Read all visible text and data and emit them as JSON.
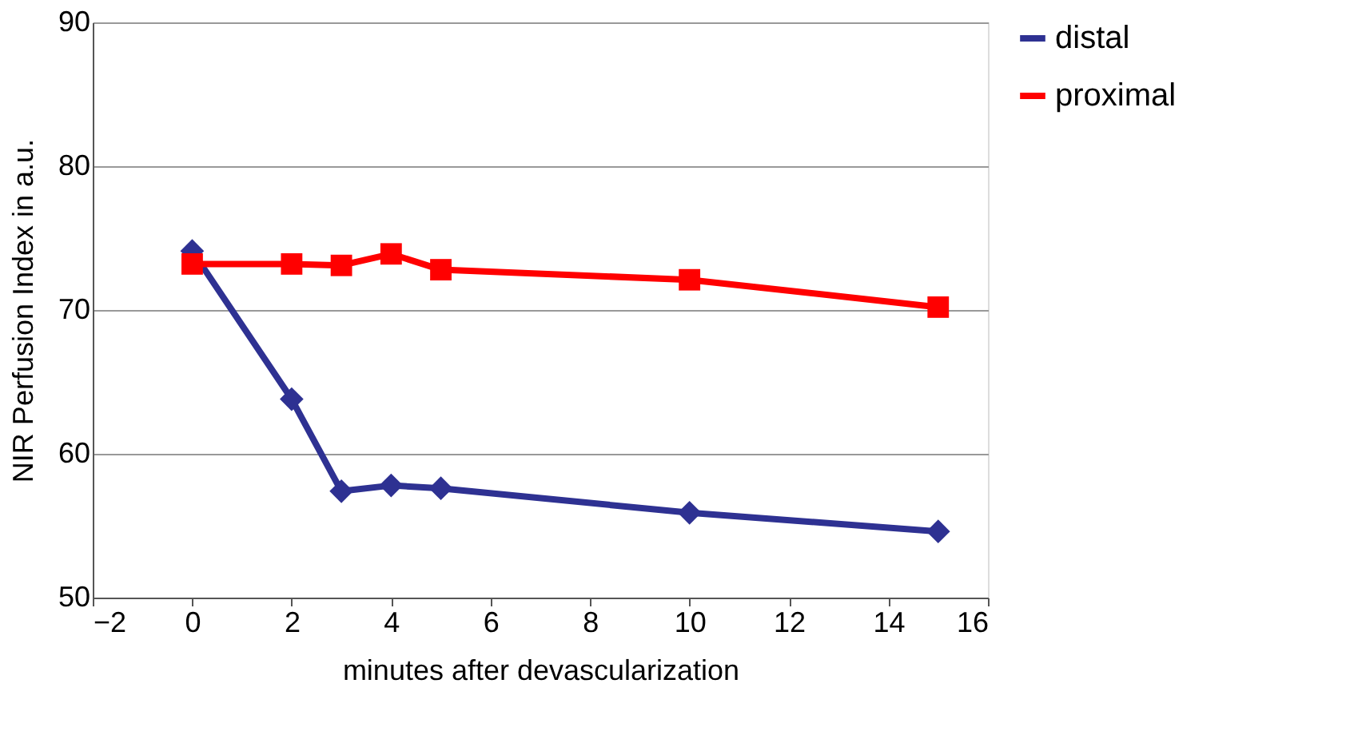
{
  "chart_data": {
    "type": "line",
    "xlabel": "minutes after devascularization",
    "ylabel": "NIR Perfusion Index in a.u.",
    "x": [
      0,
      2,
      3,
      4,
      5,
      10,
      15
    ],
    "series": [
      {
        "name": "distal",
        "color": "#2e3192",
        "marker": "diamond",
        "values": [
          74.1,
          63.8,
          57.4,
          57.8,
          57.6,
          55.9,
          54.6
        ]
      },
      {
        "name": "proximal",
        "color": "#ff0000",
        "marker": "square",
        "values": [
          73.2,
          73.2,
          73.1,
          73.9,
          72.8,
          72.1,
          70.2
        ]
      }
    ],
    "xlim": [
      -2,
      16
    ],
    "xticks": [
      -2,
      0,
      2,
      4,
      6,
      8,
      10,
      12,
      14,
      16
    ],
    "ylim": [
      50,
      90
    ],
    "yticks": [
      50,
      60,
      70,
      80,
      90
    ],
    "grid": "y",
    "legend": "top right",
    "line_style": "solid"
  }
}
